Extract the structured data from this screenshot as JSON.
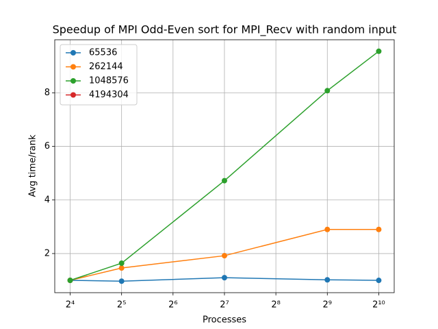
{
  "chart_data": {
    "type": "line",
    "title": "Speedup of MPI Odd-Even sort for MPI_Recv with random input",
    "x_label": "Processes",
    "y_label": "Avg time/rank",
    "x": [
      16,
      32,
      128,
      512,
      1024
    ],
    "series": [
      {
        "name": "65536",
        "color": "#1f77b4",
        "values": [
          1.0,
          0.97,
          1.1,
          1.02,
          1.0
        ]
      },
      {
        "name": "262144",
        "color": "#ff7f0e",
        "values": [
          1.0,
          1.46,
          1.92,
          2.9,
          2.9
        ]
      },
      {
        "name": "1048576",
        "color": "#2ca02c",
        "values": [
          1.0,
          1.64,
          4.72,
          8.08,
          9.55
        ]
      },
      {
        "name": "4194304",
        "color": "#d62728",
        "values": [
          null,
          null,
          null,
          null,
          null
        ]
      }
    ],
    "xscale": "log2",
    "xlim": [
      13.0,
      1261
    ],
    "xticks": [
      {
        "value": 16,
        "label": "2⁴"
      },
      {
        "value": 32,
        "label": "2⁵"
      },
      {
        "value": 64,
        "label": "2⁶"
      },
      {
        "value": 128,
        "label": "2⁷"
      },
      {
        "value": 256,
        "label": "2⁸"
      },
      {
        "value": 512,
        "label": "2⁹"
      },
      {
        "value": 1024,
        "label": "2¹⁰"
      }
    ],
    "ylim": [
      0.54,
      9.98
    ],
    "yticks": [
      2,
      4,
      6,
      8
    ],
    "grid": true,
    "legend": "upper left"
  }
}
